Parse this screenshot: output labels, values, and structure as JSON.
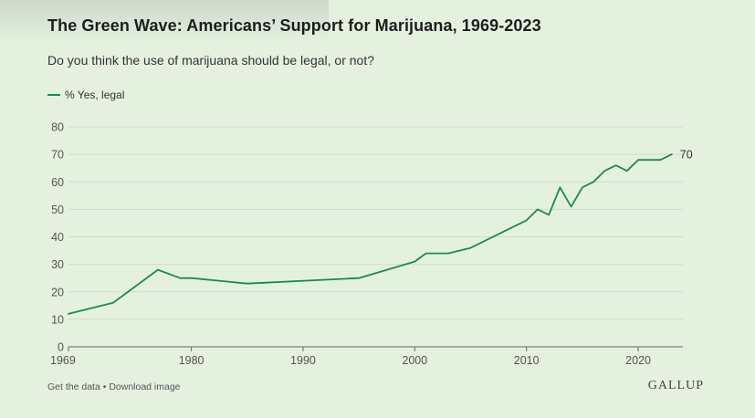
{
  "title": "The Green Wave: Americans’ Support for Marijuana, 1969-2023",
  "subtitle": "Do you think the use of marijuana should be legal, or not?",
  "footer": {
    "get_data": "Get the data",
    "separator": " • ",
    "download": "Download image",
    "brand": "GALLUP"
  },
  "colors": {
    "line": "#1d8a4c",
    "grid": "#cfdccb",
    "axis": "#666666",
    "background": "#e4f1df"
  },
  "chart_data": {
    "type": "line",
    "title": "The Green Wave: Americans’ Support for Marijuana, 1969-2023",
    "xlabel": "",
    "ylabel": "",
    "xlim": [
      1969,
      2024
    ],
    "ylim": [
      0,
      80
    ],
    "x_ticks": [
      1969,
      1980,
      1990,
      2000,
      2010,
      2020
    ],
    "y_ticks": [
      0,
      10,
      20,
      30,
      40,
      50,
      60,
      70,
      80
    ],
    "grid": true,
    "legend": "top-left",
    "end_label": "70",
    "series": [
      {
        "name": "% Yes, legal",
        "x": [
          1969,
          1972,
          1973,
          1977,
          1979,
          1980,
          1985,
          1995,
          2000,
          2001,
          2003,
          2005,
          2009,
          2010,
          2011,
          2012,
          2013,
          2014,
          2015,
          2016,
          2017,
          2018,
          2019,
          2020,
          2021,
          2022,
          2023
        ],
        "values": [
          12,
          15,
          16,
          28,
          25,
          25,
          23,
          25,
          31,
          34,
          34,
          36,
          44,
          46,
          50,
          48,
          58,
          51,
          58,
          60,
          64,
          66,
          64,
          68,
          68,
          68,
          70
        ]
      }
    ]
  }
}
